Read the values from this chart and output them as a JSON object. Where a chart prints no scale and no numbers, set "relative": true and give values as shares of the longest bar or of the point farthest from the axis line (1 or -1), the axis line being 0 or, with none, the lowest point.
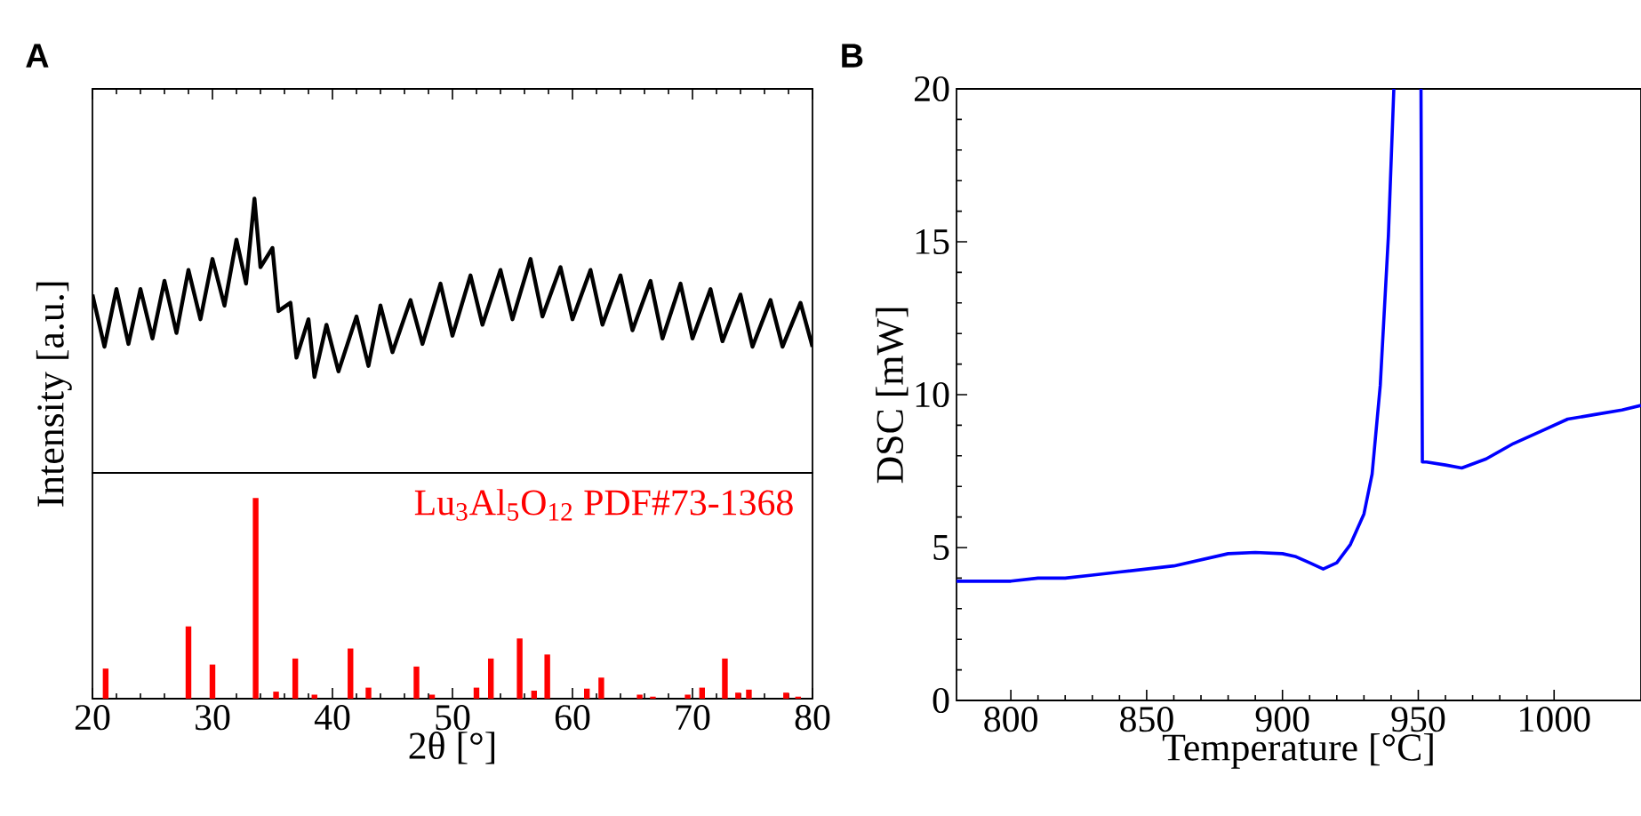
{
  "chart_data": [
    {
      "type": "line",
      "title": "A",
      "ylabel": "Intensity [a.u.]",
      "relative": true,
      "color": "#000000",
      "xlim": [
        20,
        80
      ],
      "xticks": [
        20,
        30,
        40,
        50,
        60,
        70,
        80
      ],
      "tick_labels": false,
      "x": [
        20,
        21,
        22,
        23,
        24,
        25,
        26,
        27,
        28,
        29,
        30,
        31,
        32,
        32.8,
        33.5,
        34,
        35,
        35.5,
        36.5,
        37,
        38,
        38.5,
        39.5,
        40.5,
        42,
        43,
        44,
        45,
        46.5,
        47.5,
        49,
        50,
        51.5,
        52.5,
        54,
        55,
        56.5,
        57.5,
        59,
        60,
        61.5,
        62.5,
        64,
        65,
        66.5,
        67.5,
        69,
        70,
        71.5,
        72.5,
        74,
        75,
        76.5,
        77.5,
        79,
        80
      ],
      "values": [
        0.65,
        0.46,
        0.67,
        0.47,
        0.67,
        0.49,
        0.7,
        0.51,
        0.74,
        0.56,
        0.78,
        0.61,
        0.85,
        0.69,
        1.0,
        0.75,
        0.82,
        0.59,
        0.62,
        0.42,
        0.56,
        0.35,
        0.54,
        0.37,
        0.57,
        0.39,
        0.61,
        0.44,
        0.63,
        0.47,
        0.69,
        0.5,
        0.72,
        0.54,
        0.74,
        0.56,
        0.78,
        0.57,
        0.75,
        0.56,
        0.74,
        0.54,
        0.72,
        0.52,
        0.7,
        0.49,
        0.69,
        0.49,
        0.67,
        0.48,
        0.65,
        0.46,
        0.63,
        0.46,
        0.62,
        0.46
      ]
    },
    {
      "type": "bar",
      "relative": true,
      "color": "#ff0000",
      "xlabel": "2θ [°]",
      "annotations": [
        "Lu$_{3}$Al$_{5}$O$_{12}$ PDF#73-1368"
      ],
      "xlim": [
        20,
        80
      ],
      "xticks": [
        20,
        30,
        40,
        50,
        60,
        70,
        80
      ],
      "tick_labels": "x",
      "x": [
        21.1,
        28.0,
        30.0,
        33.6,
        35.3,
        36.9,
        38.5,
        41.5,
        43.0,
        47.0,
        48.3,
        52.0,
        53.2,
        55.6,
        56.8,
        57.9,
        61.2,
        62.4,
        65.6,
        66.7,
        69.6,
        70.8,
        72.7,
        73.8,
        74.7,
        77.8,
        78.8
      ],
      "values": [
        0.15,
        0.36,
        0.17,
        1.0,
        0.035,
        0.2,
        0.02,
        0.25,
        0.055,
        0.16,
        0.02,
        0.055,
        0.2,
        0.3,
        0.04,
        0.22,
        0.05,
        0.105,
        0.02,
        0.01,
        0.02,
        0.055,
        0.2,
        0.03,
        0.045,
        0.03,
        0.01
      ]
    },
    {
      "type": "line",
      "title": "B",
      "xlabel": "Temperature [°C]",
      "ylabel": "DSC [mW]",
      "color": "#0000ff",
      "xlim": [
        780,
        1032
      ],
      "ylim": [
        0,
        20
      ],
      "xticks": [
        800,
        850,
        900,
        950,
        1000
      ],
      "yticks": [
        0,
        5,
        10,
        15,
        20
      ],
      "x": [
        780,
        790,
        800,
        810,
        820,
        830,
        840,
        850,
        860,
        870,
        880,
        890,
        900,
        905,
        910,
        915,
        920,
        925,
        930,
        933,
        936,
        939,
        941,
        946,
        951,
        951.5,
        953,
        960,
        966,
        975,
        985,
        995,
        1005,
        1015,
        1025,
        1032
      ],
      "values": [
        3.9,
        3.9,
        3.9,
        4.0,
        4.0,
        4.1,
        4.2,
        4.3,
        4.4,
        4.6,
        4.8,
        4.84,
        4.8,
        4.7,
        4.5,
        4.3,
        4.5,
        5.1,
        6.1,
        7.4,
        10.3,
        15.2,
        20,
        null,
        20,
        7.8,
        7.8,
        7.7,
        7.6,
        7.9,
        8.4,
        8.8,
        9.2,
        9.35,
        9.5,
        9.65
      ]
    }
  ]
}
